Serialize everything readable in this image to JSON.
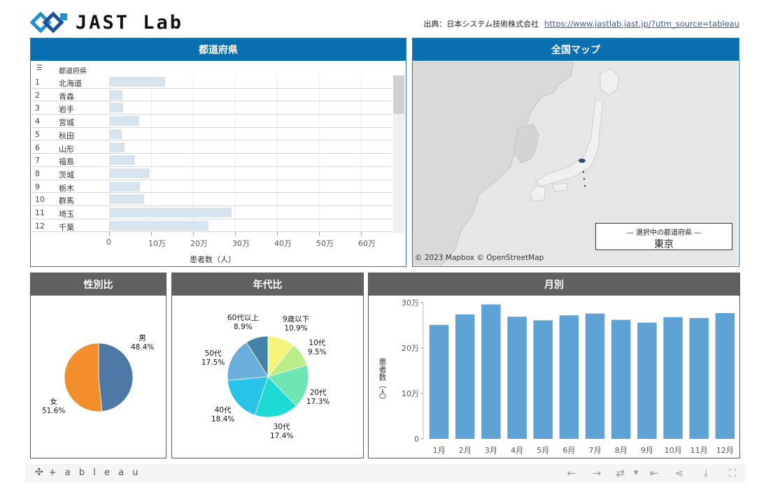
{
  "header": {
    "logo_text": "JAST Lab",
    "source_label": "出典：日本システム技術株式会社",
    "source_link": "https://www.jastlab.jast.jp/?utm_source=tableau"
  },
  "prefecture_panel": {
    "title": "都道府県",
    "column_header": "都道府県",
    "rows": [
      {
        "num": "1",
        "name": "北海道",
        "value": 133000
      },
      {
        "num": "2",
        "name": "青森",
        "value": 32000
      },
      {
        "num": "3",
        "name": "岩手",
        "value": 33000
      },
      {
        "num": "4",
        "name": "宮城",
        "value": 71000
      },
      {
        "num": "5",
        "name": "秋田",
        "value": 30000
      },
      {
        "num": "6",
        "name": "山形",
        "value": 36000
      },
      {
        "num": "7",
        "name": "福島",
        "value": 61000
      },
      {
        "num": "8",
        "name": "茨城",
        "value": 96000
      },
      {
        "num": "9",
        "name": "栃木",
        "value": 74000
      },
      {
        "num": "10",
        "name": "群馬",
        "value": 84000
      },
      {
        "num": "11",
        "name": "埼玉",
        "value": 292000
      },
      {
        "num": "12",
        "name": "千葉",
        "value": 237000
      }
    ],
    "axis_ticks": [
      "0",
      "10万",
      "20万",
      "30万",
      "40万",
      "50万",
      "60万"
    ],
    "axis_max": 700000,
    "axis_label": "患者数（人）"
  },
  "map_panel": {
    "title": "全国マップ",
    "legend_title": "選択中の都道府県",
    "legend_value": "東京",
    "attribution": "© 2023 Mapbox  © OpenStreetMap"
  },
  "gender_panel": {
    "title": "性別比",
    "slices": [
      {
        "label": "男",
        "pct": "48.4%",
        "value": 48.4,
        "color": "#4e79a7"
      },
      {
        "label": "女",
        "pct": "51.6%",
        "value": 51.6,
        "color": "#f28e2b"
      }
    ]
  },
  "age_panel": {
    "title": "年代比",
    "slices": [
      {
        "label": "9歳以下",
        "pct": "10.9%",
        "value": 10.9,
        "color": "#f4f47a"
      },
      {
        "label": "10代",
        "pct": "9.5%",
        "value": 9.5,
        "color": "#b7ef86"
      },
      {
        "label": "20代",
        "pct": "17.3%",
        "value": 17.3,
        "color": "#6ee6b4"
      },
      {
        "label": "30代",
        "pct": "17.4%",
        "value": 17.4,
        "color": "#1ddbd3"
      },
      {
        "label": "40代",
        "pct": "18.4%",
        "value": 18.4,
        "color": "#28c3e8"
      },
      {
        "label": "50代",
        "pct": "17.5%",
        "value": 17.5,
        "color": "#6aaedb"
      },
      {
        "label": "60代以上",
        "pct": "8.9%",
        "value": 8.9,
        "color": "#4483a8"
      }
    ]
  },
  "month_panel": {
    "title": "月別",
    "ylabel": "患者数（人）",
    "yticks": [
      "0",
      "10万",
      "20万",
      "30万"
    ],
    "ymax": 300000,
    "chart_data": {
      "type": "bar",
      "categories": [
        "1月",
        "2月",
        "3月",
        "4月",
        "5月",
        "6月",
        "7月",
        "8月",
        "9月",
        "10月",
        "11月",
        "12月"
      ],
      "values": [
        251000,
        274000,
        296000,
        269000,
        261000,
        272000,
        276000,
        262000,
        256000,
        268000,
        266000,
        277000
      ],
      "ylabel": "患者数（人）",
      "ylim": [
        0,
        300000
      ],
      "color": "#5fa2d6"
    }
  },
  "footer": {
    "brand": "+ a b l e a u"
  }
}
